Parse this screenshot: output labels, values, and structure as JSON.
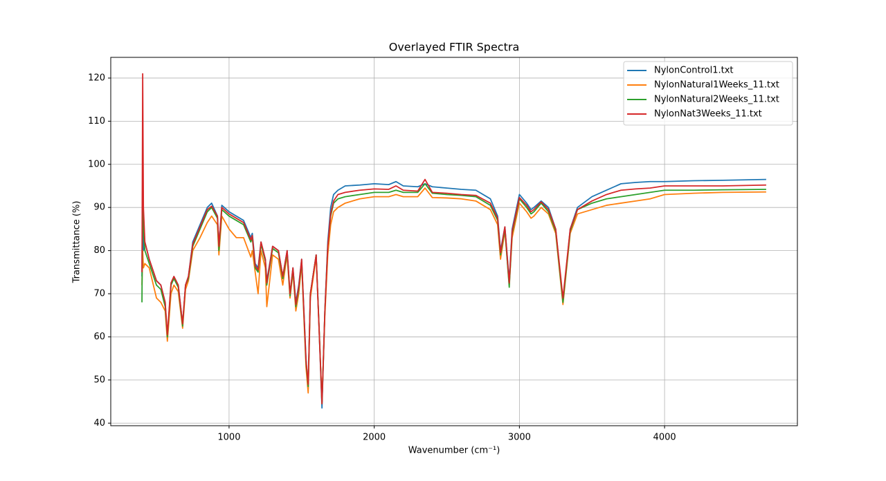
{
  "chart_data": {
    "type": "line",
    "title": "Overlayed FTIR Spectra",
    "xlabel": "Wavenumber (cm⁻¹)",
    "ylabel": "Transmittance (%)",
    "x": [
      400,
      405,
      410,
      420,
      450,
      500,
      530,
      560,
      575,
      600,
      620,
      650,
      680,
      700,
      720,
      750,
      800,
      850,
      880,
      920,
      930,
      950,
      1000,
      1050,
      1100,
      1150,
      1160,
      1180,
      1200,
      1220,
      1250,
      1260,
      1300,
      1340,
      1370,
      1400,
      1420,
      1440,
      1460,
      1480,
      1500,
      1530,
      1545,
      1560,
      1600,
      1620,
      1640,
      1660,
      1680,
      1700,
      1720,
      1750,
      1800,
      1900,
      2000,
      2100,
      2150,
      2200,
      2300,
      2350,
      2400,
      2500,
      2600,
      2700,
      2800,
      2850,
      2870,
      2900,
      2930,
      2950,
      3000,
      3050,
      3080,
      3100,
      3150,
      3200,
      3250,
      3300,
      3350,
      3400,
      3500,
      3600,
      3700,
      3800,
      3900,
      4000,
      4200,
      4400,
      4700
    ],
    "series": [
      {
        "name": "NylonControl1.txt",
        "color": "#1f77b4",
        "values": [
          74,
          100,
          80,
          82,
          78,
          73,
          72,
          68,
          60,
          72,
          74,
          72,
          63,
          72,
          74,
          82,
          86,
          90,
          91,
          88,
          81,
          90.5,
          89,
          88,
          87,
          83,
          84,
          77,
          76,
          82,
          78,
          73,
          81,
          80,
          74,
          80,
          70,
          76,
          68,
          72,
          78,
          55,
          48,
          70,
          79,
          62,
          43.5,
          66,
          82,
          90,
          93,
          94,
          95,
          95.2,
          95.5,
          95.3,
          96,
          95,
          94.8,
          95.5,
          94.8,
          94.5,
          94.2,
          94,
          92,
          88,
          80,
          85.5,
          73,
          85,
          93,
          91,
          89.5,
          90,
          91.5,
          90,
          85,
          68,
          85,
          90,
          92.5,
          94,
          95.5,
          95.8,
          96,
          96,
          96.2,
          96.3,
          96.5
        ]
      },
      {
        "name": "NylonNatural1Weeks_11.txt",
        "color": "#ff7f0e",
        "values": [
          72,
          80,
          76,
          77,
          76,
          69,
          68,
          66,
          59,
          70,
          72,
          70.5,
          62,
          71,
          73,
          80,
          83,
          86.5,
          88,
          86,
          79,
          88,
          85,
          83,
          83,
          78.5,
          80,
          75,
          70,
          80,
          76,
          67,
          79,
          78,
          72,
          79,
          69,
          75,
          66,
          70,
          77,
          53,
          47,
          69,
          78.5,
          62,
          45,
          65,
          79,
          86,
          89,
          90,
          91,
          92,
          92.5,
          92.5,
          93,
          92.5,
          92.5,
          94.5,
          92.3,
          92.2,
          92,
          91.5,
          89.5,
          86,
          78,
          84.5,
          72,
          83,
          91,
          89,
          87.5,
          88,
          90,
          88.5,
          84,
          67.5,
          84,
          88.5,
          89.5,
          90.5,
          91,
          91.5,
          92,
          93,
          93.3,
          93.5,
          93.6
        ]
      },
      {
        "name": "NylonNatural2Weeks_11.txt",
        "color": "#2ca02c",
        "values": [
          68,
          98,
          85,
          80,
          77,
          72,
          71,
          67,
          60,
          72,
          73.5,
          71.5,
          62.5,
          72,
          73.5,
          81,
          85,
          89,
          90,
          87.5,
          80,
          89.5,
          88,
          87,
          86,
          82,
          83,
          76,
          75,
          81.5,
          77.5,
          72,
          80.5,
          79.5,
          73.5,
          79.5,
          69.5,
          75.5,
          67,
          71,
          77.5,
          54,
          48.5,
          70,
          79,
          62.5,
          44.5,
          66,
          81,
          88,
          91,
          92,
          92.5,
          93,
          93.5,
          93.5,
          94,
          93.5,
          93.5,
          95.5,
          93.3,
          93,
          92.8,
          92.5,
          90.5,
          87,
          79,
          85,
          71.5,
          84,
          92,
          90,
          88.5,
          89,
          91,
          89,
          84.5,
          68,
          84.5,
          89.5,
          91,
          92,
          92.5,
          93,
          93.5,
          94,
          94,
          94.1,
          94.2
        ]
      },
      {
        "name": "NylonNat3Weeks_11.txt",
        "color": "#d62728",
        "values": [
          75,
          121,
          90,
          82,
          78,
          73,
          72,
          68,
          60.5,
          72.5,
          74,
          72,
          63,
          72,
          74,
          81.5,
          85.5,
          89.5,
          90.3,
          88,
          81,
          90,
          88.5,
          87.5,
          86.5,
          82.5,
          83.5,
          76.5,
          75.5,
          82,
          78,
          72.5,
          81,
          80,
          74,
          80,
          70,
          76,
          67.5,
          71.5,
          78,
          54.5,
          49,
          70,
          79,
          62,
          44.5,
          66,
          81,
          88.5,
          91.5,
          93,
          93.5,
          94,
          94.3,
          94.2,
          95,
          94,
          93.8,
          96.5,
          93.5,
          93.3,
          93,
          92.8,
          91,
          87.5,
          79.5,
          85.5,
          72.5,
          84.5,
          92.3,
          90.5,
          89,
          89.5,
          91.3,
          89.5,
          85,
          69,
          85,
          89.5,
          91.5,
          93,
          94,
          94.3,
          94.5,
          95,
          95,
          95,
          95.2
        ]
      }
    ],
    "xlim": [
      185,
      4915
    ],
    "ylim": [
      39.4,
      124.8
    ],
    "xticks": [
      1000,
      2000,
      3000,
      4000
    ],
    "yticks": [
      40,
      50,
      60,
      70,
      80,
      90,
      100,
      110,
      120
    ],
    "grid": true,
    "legend": "upper right"
  }
}
